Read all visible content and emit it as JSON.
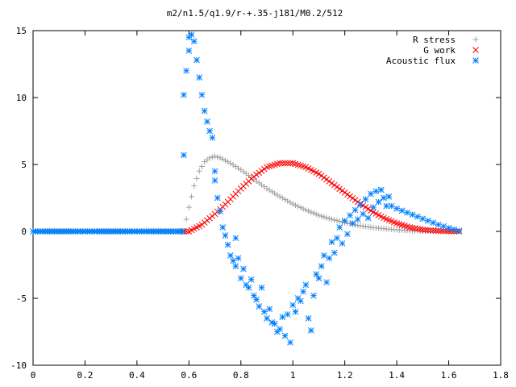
{
  "chart_data": {
    "type": "scatter",
    "title": "m2/n1.5/q1.9/r-+.35-j181/M0.2/512",
    "xlabel": "",
    "ylabel": "",
    "xlim": [
      0,
      1.8
    ],
    "ylim": [
      -10,
      15
    ],
    "x_ticks": [
      "0",
      "0.2",
      "0.4",
      "0.6",
      "0.8",
      "1",
      "1.2",
      "1.4",
      "1.6",
      "1.8"
    ],
    "y_ticks": [
      "15",
      "10",
      "5",
      "0",
      "-5",
      "-10"
    ],
    "legend_position": "top-right",
    "grid": false,
    "series": [
      {
        "name": "R stress",
        "marker": "plus",
        "color": "#a0a0a0",
        "x": [
          0.0,
          0.2,
          0.4,
          0.58,
          0.6,
          0.62,
          0.64,
          0.66,
          0.68,
          0.7,
          0.72,
          0.76,
          0.8,
          0.85,
          0.9,
          0.95,
          1.0,
          1.05,
          1.1,
          1.15,
          1.2,
          1.25,
          1.3,
          1.35,
          1.4,
          1.45,
          1.5,
          1.55,
          1.6,
          1.64
        ],
        "y": [
          0.0,
          0.0,
          0.0,
          0.0,
          1.8,
          3.4,
          4.5,
          5.2,
          5.5,
          5.6,
          5.5,
          5.1,
          4.6,
          3.9,
          3.2,
          2.6,
          2.05,
          1.6,
          1.2,
          0.9,
          0.65,
          0.45,
          0.3,
          0.2,
          0.12,
          0.06,
          0.03,
          0.01,
          0.0,
          0.0
        ]
      },
      {
        "name": "G work",
        "marker": "cross",
        "color": "#ff0000",
        "x": [
          0.58,
          0.6,
          0.65,
          0.7,
          0.75,
          0.8,
          0.85,
          0.9,
          0.95,
          1.0,
          1.05,
          1.1,
          1.15,
          1.2,
          1.25,
          1.3,
          1.35,
          1.4,
          1.45,
          1.5,
          1.55,
          1.6,
          1.64
        ],
        "y": [
          0.0,
          0.0,
          0.5,
          1.3,
          2.2,
          3.2,
          4.1,
          4.8,
          5.1,
          5.1,
          4.8,
          4.3,
          3.6,
          2.9,
          2.2,
          1.55,
          1.0,
          0.6,
          0.3,
          0.12,
          0.05,
          0.01,
          0.0
        ]
      },
      {
        "name": "Acoustic flux",
        "marker": "star",
        "color": "#0080ff",
        "x": [
          0.0,
          0.1,
          0.2,
          0.3,
          0.4,
          0.5,
          0.55,
          0.575,
          0.58,
          0.58,
          0.59,
          0.6,
          0.6,
          0.61,
          0.62,
          0.63,
          0.64,
          0.65,
          0.66,
          0.67,
          0.68,
          0.69,
          0.7,
          0.7,
          0.71,
          0.72,
          0.73,
          0.74,
          0.75,
          0.76,
          0.77,
          0.78,
          0.78,
          0.79,
          0.8,
          0.81,
          0.82,
          0.83,
          0.84,
          0.85,
          0.86,
          0.87,
          0.88,
          0.89,
          0.9,
          0.91,
          0.92,
          0.93,
          0.94,
          0.95,
          0.96,
          0.97,
          0.98,
          0.99,
          1.0,
          1.01,
          1.02,
          1.03,
          1.04,
          1.05,
          1.06,
          1.07,
          1.08,
          1.09,
          1.1,
          1.11,
          1.12,
          1.13,
          1.14,
          1.15,
          1.16,
          1.17,
          1.18,
          1.19,
          1.2,
          1.21,
          1.22,
          1.23,
          1.24,
          1.25,
          1.26,
          1.27,
          1.28,
          1.29,
          1.3,
          1.31,
          1.32,
          1.33,
          1.34,
          1.35,
          1.36,
          1.37,
          1.38,
          1.4,
          1.42,
          1.44,
          1.46,
          1.48,
          1.5,
          1.52,
          1.54,
          1.56,
          1.58,
          1.6,
          1.62,
          1.64
        ],
        "y": [
          0.0,
          0.0,
          0.0,
          0.0,
          0.0,
          0.0,
          0.0,
          0.0,
          5.7,
          10.2,
          12.0,
          14.5,
          13.5,
          14.7,
          14.2,
          12.8,
          11.5,
          10.2,
          9.0,
          8.2,
          7.5,
          7.0,
          4.5,
          3.8,
          2.5,
          1.5,
          0.3,
          -0.3,
          -1.0,
          -1.8,
          -2.2,
          -2.6,
          -0.5,
          -2.0,
          -3.5,
          -2.8,
          -4.0,
          -4.2,
          -3.6,
          -4.8,
          -5.1,
          -5.6,
          -4.2,
          -6.0,
          -6.5,
          -5.8,
          -6.8,
          -6.9,
          -7.5,
          -7.3,
          -6.4,
          -7.8,
          -6.2,
          -8.3,
          -5.5,
          -6.0,
          -5.0,
          -5.2,
          -4.5,
          -4.0,
          -6.5,
          -7.4,
          -4.8,
          -3.2,
          -3.5,
          -2.6,
          -1.8,
          -3.8,
          -2.0,
          -0.8,
          -1.6,
          -0.5,
          0.3,
          -0.9,
          0.8,
          -0.2,
          1.2,
          0.6,
          1.6,
          0.9,
          2.0,
          1.3,
          2.4,
          1.0,
          2.8,
          1.8,
          3.0,
          2.2,
          3.1,
          2.5,
          1.9,
          2.6,
          1.9,
          1.7,
          1.55,
          1.4,
          1.25,
          1.1,
          0.95,
          0.8,
          0.65,
          0.5,
          0.38,
          0.25,
          0.15,
          0.05
        ]
      }
    ]
  }
}
